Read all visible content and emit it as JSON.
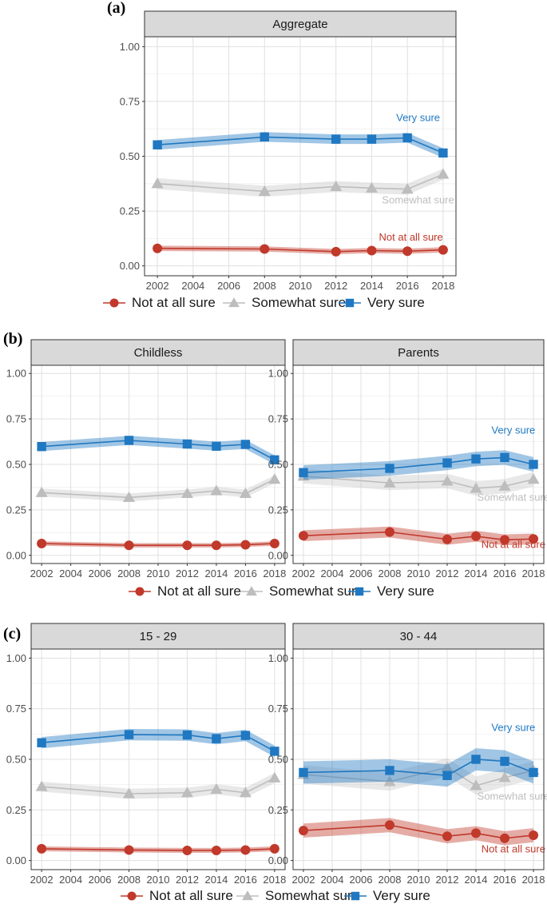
{
  "figure": {
    "colors": {
      "not": "#c0392b",
      "some": "#bdbdbd",
      "very": "#1f78c1"
    },
    "series_names": [
      "Not at all sure",
      "Somewhat sure",
      "Very sure"
    ],
    "sections": [
      {
        "letter": "(a)",
        "legend": [
          "Not at all sure",
          "Somewhat sure",
          "Very sure"
        ]
      },
      {
        "letter": "(b)",
        "legend": [
          "Not at all sure",
          "Somewhat sure",
          "Very sure"
        ]
      },
      {
        "letter": "(c)",
        "legend": [
          "Not at all sure",
          "Somewhat sure",
          "Very sure"
        ]
      }
    ]
  },
  "chart_data": [
    {
      "type": "line",
      "title": "Aggregate",
      "section": 0,
      "x": [
        2002,
        2008,
        2012,
        2014,
        2016,
        2018
      ],
      "xlim": [
        2002,
        2018
      ],
      "xticks": [
        "2002",
        "2004",
        "2006",
        "2008",
        "2010",
        "2012",
        "2014",
        "2016",
        "2018"
      ],
      "ylim": [
        0,
        1
      ],
      "yticks": [
        "0.00",
        "0.25",
        "0.50",
        "0.75",
        "1.00"
      ],
      "series": [
        {
          "name": "Not at all sure",
          "values": [
            0.08,
            0.077,
            0.065,
            0.07,
            0.067,
            0.073
          ],
          "band": 0.012,
          "label": "Not at all sure",
          "label_at": [
            2016.2,
            0.116
          ]
        },
        {
          "name": "Somewhat sure",
          "values": [
            0.375,
            0.34,
            0.362,
            0.355,
            0.35,
            0.418
          ],
          "band": 0.025,
          "label": "Somewhat sure",
          "label_at": [
            2016.6,
            0.285
          ]
        },
        {
          "name": "Very sure",
          "values": [
            0.552,
            0.588,
            0.578,
            0.578,
            0.584,
            0.515
          ],
          "band": 0.022,
          "label": "Very sure",
          "label_at": [
            2016.6,
            0.66
          ]
        }
      ]
    },
    {
      "type": "line",
      "title": "Childless",
      "section": 1,
      "x": [
        2002,
        2008,
        2012,
        2014,
        2016,
        2018
      ],
      "xlim": [
        2002,
        2018
      ],
      "xticks": [
        "2002",
        "2004",
        "2006",
        "2008",
        "2010",
        "2012",
        "2014",
        "2016",
        "2018"
      ],
      "ylim": [
        0,
        1
      ],
      "yticks": [
        "0.00",
        "0.25",
        "0.50",
        "0.75",
        "1.00"
      ],
      "series": [
        {
          "name": "Not at all sure",
          "values": [
            0.065,
            0.055,
            0.055,
            0.055,
            0.058,
            0.065
          ],
          "band": 0.012
        },
        {
          "name": "Somewhat sure",
          "values": [
            0.345,
            0.318,
            0.34,
            0.355,
            0.34,
            0.418
          ],
          "band": 0.022
        },
        {
          "name": "Very sure",
          "values": [
            0.598,
            0.632,
            0.612,
            0.6,
            0.61,
            0.525
          ],
          "band": 0.025
        }
      ]
    },
    {
      "type": "line",
      "title": "Parents",
      "section": 1,
      "x": [
        2002,
        2008,
        2012,
        2014,
        2016,
        2018
      ],
      "xlim": [
        2002,
        2018
      ],
      "xticks": [
        "2002",
        "2004",
        "2006",
        "2008",
        "2010",
        "2012",
        "2014",
        "2016",
        "2018"
      ],
      "ylim": [
        0,
        1
      ],
      "yticks": [
        "0.00",
        "0.25",
        "0.50",
        "0.75",
        "1.00"
      ],
      "series": [
        {
          "name": "Not at all sure",
          "values": [
            0.108,
            0.128,
            0.088,
            0.105,
            0.085,
            0.09
          ],
          "band": 0.03,
          "label": "Not at all sure",
          "label_at": [
            2016.6,
            0.04
          ]
        },
        {
          "name": "Somewhat sure",
          "values": [
            0.435,
            0.398,
            0.408,
            0.368,
            0.38,
            0.418
          ],
          "band": 0.04,
          "label": "Somewhat sure",
          "label_at": [
            2016.6,
            0.3
          ]
        },
        {
          "name": "Very sure",
          "values": [
            0.455,
            0.478,
            0.508,
            0.53,
            0.538,
            0.5
          ],
          "band": 0.04,
          "label": "Very sure",
          "label_at": [
            2016.6,
            0.67
          ]
        }
      ]
    },
    {
      "type": "line",
      "title": "15 - 29",
      "section": 2,
      "x": [
        2002,
        2008,
        2012,
        2014,
        2016,
        2018
      ],
      "xlim": [
        2002,
        2018
      ],
      "xticks": [
        "2002",
        "2004",
        "2006",
        "2008",
        "2010",
        "2012",
        "2014",
        "2016",
        "2018"
      ],
      "ylim": [
        0,
        1
      ],
      "yticks": [
        "0.00",
        "0.25",
        "0.50",
        "0.75",
        "1.00"
      ],
      "series": [
        {
          "name": "Not at all sure",
          "values": [
            0.058,
            0.052,
            0.05,
            0.05,
            0.052,
            0.058
          ],
          "band": 0.012
        },
        {
          "name": "Somewhat sure",
          "values": [
            0.365,
            0.33,
            0.335,
            0.352,
            0.335,
            0.408
          ],
          "band": 0.025
        },
        {
          "name": "Very sure",
          "values": [
            0.582,
            0.622,
            0.62,
            0.602,
            0.618,
            0.54
          ],
          "band": 0.028
        }
      ]
    },
    {
      "type": "line",
      "title": "30 - 44",
      "section": 2,
      "x": [
        2002,
        2008,
        2012,
        2014,
        2016,
        2018
      ],
      "xlim": [
        2002,
        2018
      ],
      "xticks": [
        "2002",
        "2004",
        "2006",
        "2008",
        "2010",
        "2012",
        "2014",
        "2016",
        "2018"
      ],
      "ylim": [
        0,
        1
      ],
      "yticks": [
        "0.00",
        "0.25",
        "0.50",
        "0.75",
        "1.00"
      ],
      "series": [
        {
          "name": "Not at all sure",
          "values": [
            0.148,
            0.175,
            0.12,
            0.135,
            0.11,
            0.125
          ],
          "band": 0.035,
          "label": "Not at all sure",
          "label_at": [
            2016.6,
            0.04
          ]
        },
        {
          "name": "Somewhat sure",
          "values": [
            0.425,
            0.39,
            0.46,
            0.37,
            0.41,
            0.445
          ],
          "band": 0.045,
          "label": "Somewhat sure",
          "label_at": [
            2016.6,
            0.3
          ]
        },
        {
          "name": "Very sure",
          "values": [
            0.435,
            0.445,
            0.42,
            0.5,
            0.49,
            0.435
          ],
          "band": 0.055,
          "label": "Very sure",
          "label_at": [
            2016.6,
            0.64
          ]
        }
      ]
    }
  ]
}
